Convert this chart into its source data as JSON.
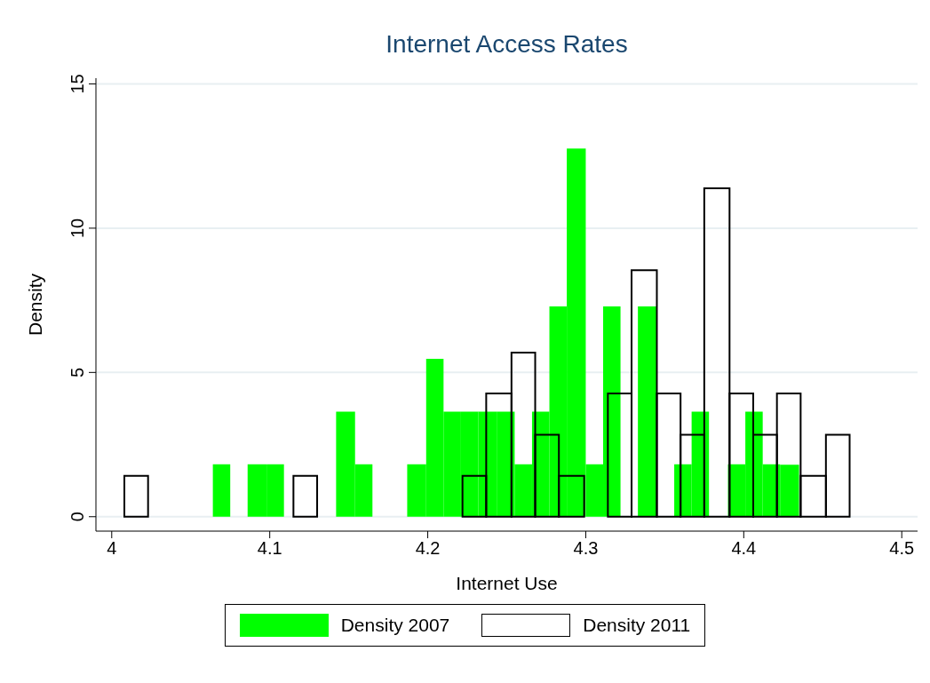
{
  "chart_data": {
    "type": "histogram",
    "title": "Internet Access Rates",
    "xlabel": "Internet Use",
    "ylabel": "Density",
    "bins": [
      4.064,
      4.075,
      4.086,
      4.098,
      4.109,
      4.142,
      4.154,
      4.165,
      4.187,
      4.199,
      4.21,
      4.221,
      4.232,
      4.244,
      4.255,
      4.266,
      4.277,
      4.288,
      4.3,
      4.311,
      4.322,
      4.333,
      4.345,
      4.356,
      4.367,
      4.378,
      4.39,
      4.401,
      4.412,
      4.423,
      4.435
    ],
    "xlim": [
      3.99,
      4.51
    ],
    "xticks": [
      4,
      4.1,
      4.2,
      4.3,
      4.4,
      4.5
    ],
    "ylim": [
      -0.5,
      15.2
    ],
    "yticks": [
      0,
      5,
      10,
      15
    ],
    "grid": "y",
    "legend": "bottom",
    "series": [
      {
        "name": "Density 2007",
        "color": "#00ff00",
        "values": [
          1.82,
          0,
          1.82,
          1.82,
          0,
          3.64,
          1.82,
          0,
          1.82,
          5.47,
          3.64,
          3.64,
          3.64,
          3.64,
          1.82,
          3.64,
          7.29,
          12.76,
          1.82,
          7.29,
          0,
          7.29,
          0,
          1.82,
          3.64,
          0,
          1.82,
          3.64,
          1.82,
          1.8
        ]
      },
      {
        "name": "Density 2011",
        "color": "#000000",
        "line_style": "solid",
        "bins": [
          4.008,
          4.023,
          4.115,
          4.13,
          4.222,
          4.237,
          4.253,
          4.268,
          4.283,
          4.299,
          4.314,
          4.329,
          4.345,
          4.36,
          4.375,
          4.391,
          4.406,
          4.421,
          4.436,
          4.452,
          4.467
        ],
        "values": [
          1.42,
          0,
          1.42,
          0,
          1.42,
          4.27,
          5.69,
          2.84,
          1.42,
          0,
          4.27,
          8.54,
          4.27,
          2.84,
          11.38,
          4.27,
          2.84,
          4.27,
          1.42,
          2.84
        ]
      }
    ]
  }
}
